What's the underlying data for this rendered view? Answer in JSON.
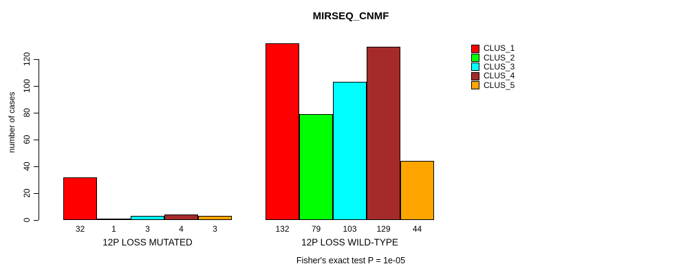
{
  "chart_data": {
    "type": "bar",
    "title": "MIRSEQ_CNMF",
    "ylabel": "number of cases",
    "subtitle": "Fisher's exact test P = 1e-05",
    "ylim": [
      0,
      135
    ],
    "yticks": [
      0,
      20,
      40,
      60,
      80,
      100,
      120
    ],
    "grid": false,
    "legend_position": "right",
    "bar_border_color": "#000000",
    "series": [
      {
        "name": "CLUS_1",
        "color": "#FF0000"
      },
      {
        "name": "CLUS_2",
        "color": "#00FF00"
      },
      {
        "name": "CLUS_3",
        "color": "#00FFFF"
      },
      {
        "name": "CLUS_4",
        "color": "#A52A2A"
      },
      {
        "name": "CLUS_5",
        "color": "#FFA500"
      }
    ],
    "groups": [
      {
        "label": "12P LOSS MUTATED",
        "values": [
          32,
          1,
          3,
          4,
          3
        ]
      },
      {
        "label": "12P LOSS WILD-TYPE",
        "values": [
          132,
          79,
          103,
          129,
          44
        ]
      }
    ]
  }
}
